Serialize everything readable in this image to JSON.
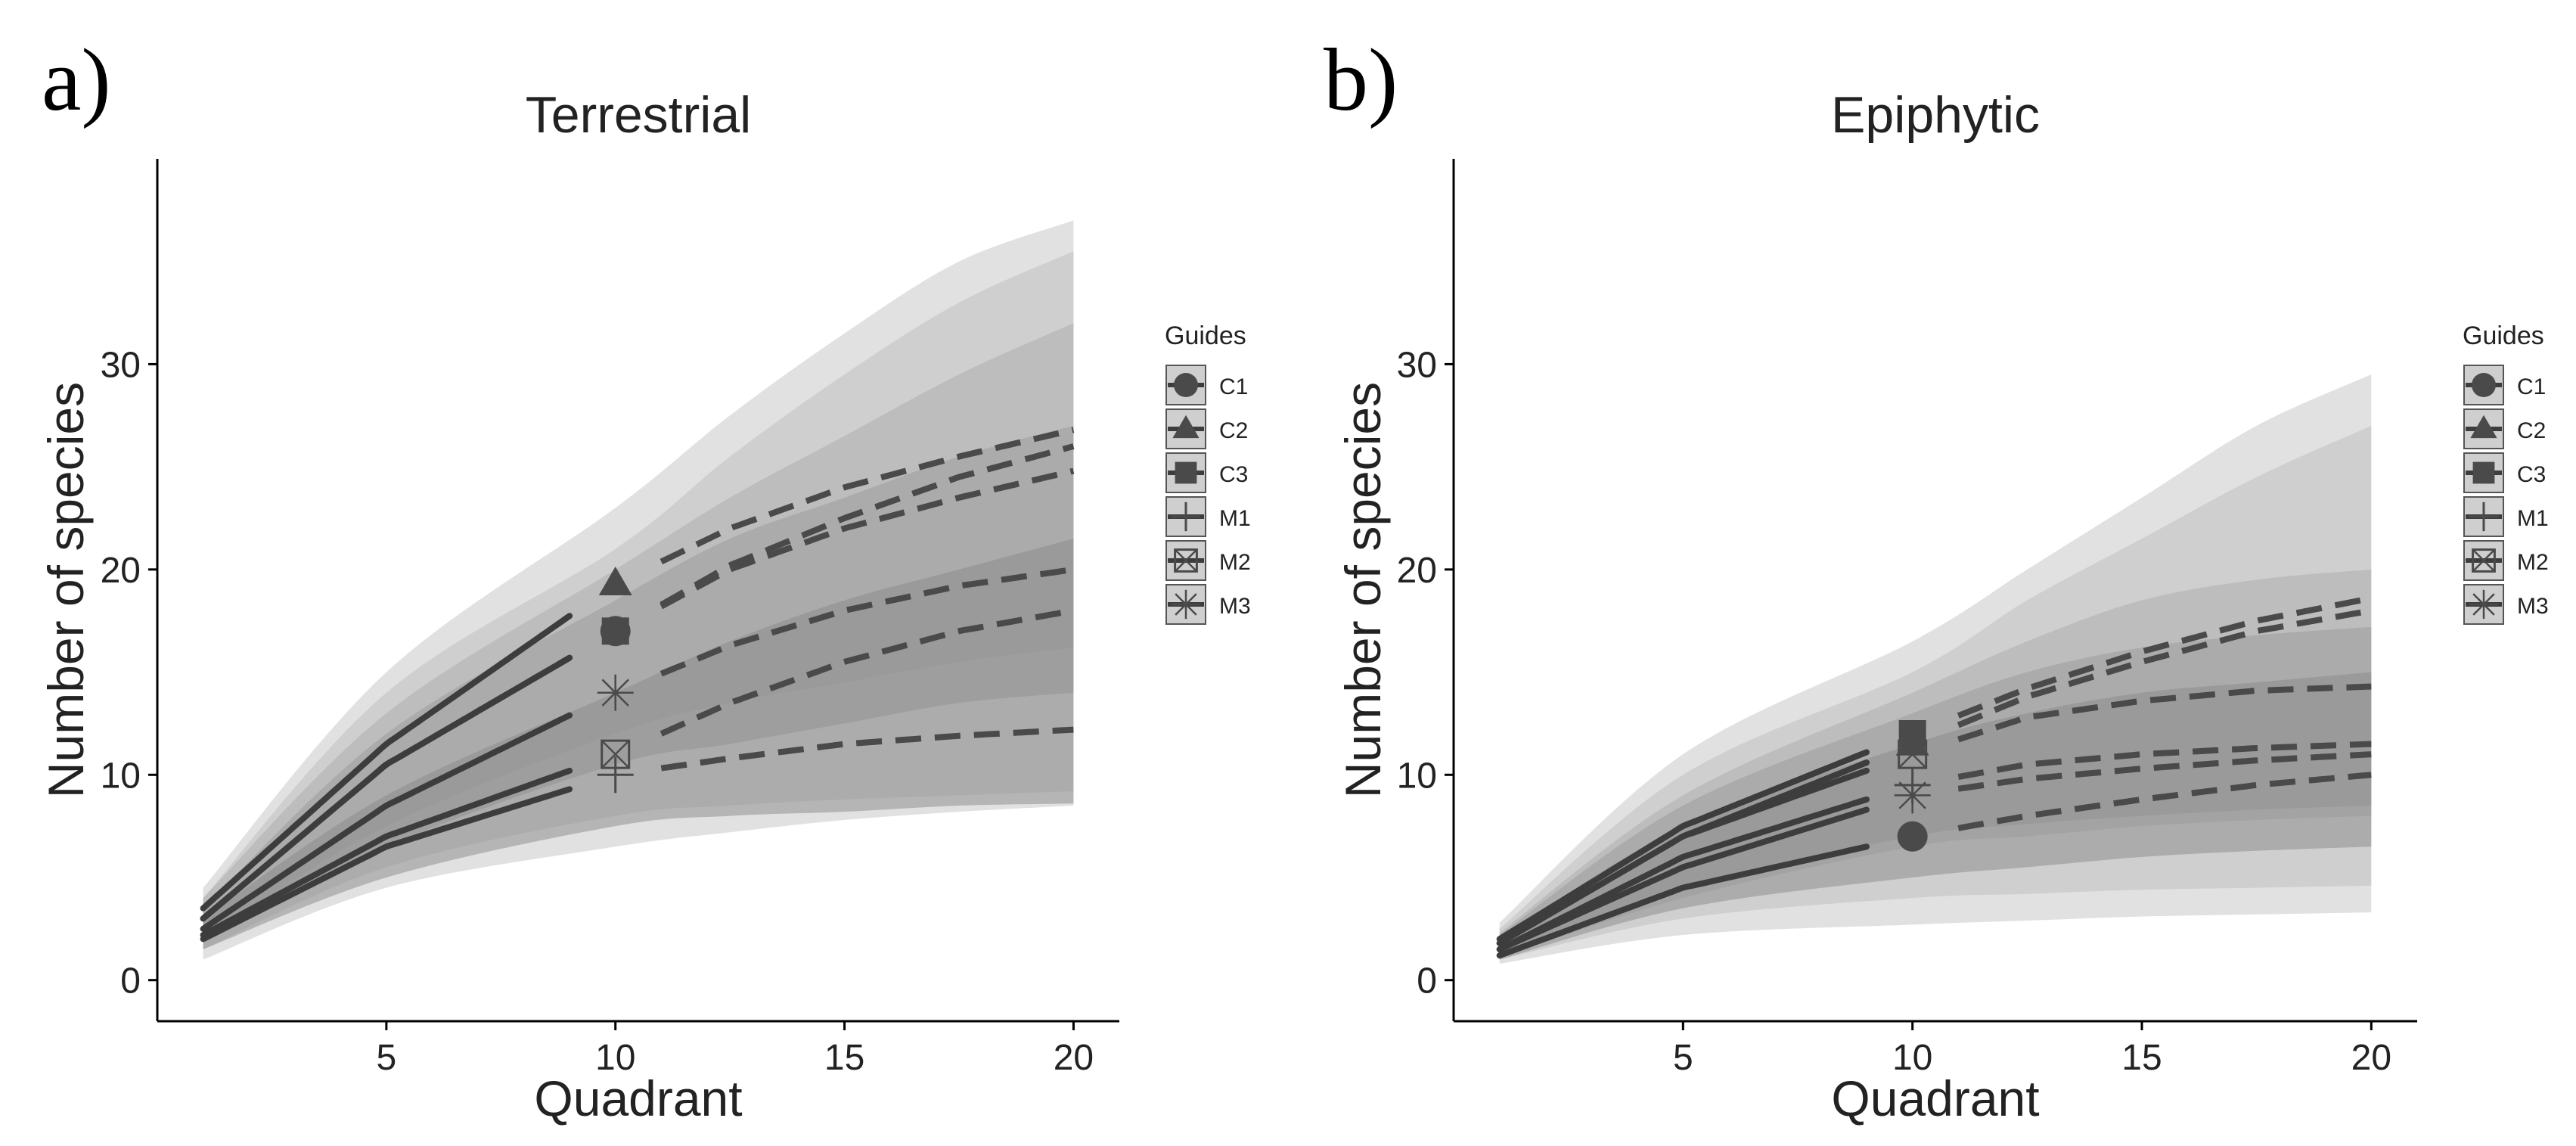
{
  "figure": {
    "legend_title": "Guides",
    "legend_items": [
      {
        "label": "C1",
        "shape": "circle"
      },
      {
        "label": "C2",
        "shape": "triangle"
      },
      {
        "label": "C3",
        "shape": "square"
      },
      {
        "label": "M1",
        "shape": "plus"
      },
      {
        "label": "M2",
        "shape": "boxcross"
      },
      {
        "label": "M3",
        "shape": "asterisk"
      }
    ]
  },
  "chart_data": [
    {
      "type": "line",
      "panel_label": "a)",
      "title": "Terrestrial",
      "xlabel": "Quadrant",
      "ylabel": "Number of species",
      "xlim": [
        0,
        21
      ],
      "ylim": [
        -2,
        40
      ],
      "xticks": [
        5,
        10,
        15,
        20
      ],
      "yticks": [
        0,
        10,
        20,
        30
      ],
      "observed_end": 10,
      "series": [
        {
          "name": "C1",
          "values": [
            3,
            10.5,
            17,
            20.2,
            22.5,
            24.5,
            26
          ]
        },
        {
          "name": "C2",
          "values": [
            3.5,
            11.5,
            19.3,
            22,
            24,
            25.5,
            26.8
          ]
        },
        {
          "name": "C3",
          "values": [
            3,
            10.5,
            17,
            20,
            22,
            23.5,
            24.8
          ]
        },
        {
          "name": "M1",
          "values": [
            2,
            6.5,
            10,
            10.8,
            11.5,
            11.9,
            12.2
          ]
        },
        {
          "name": "M2",
          "values": [
            2.2,
            7,
            11,
            13.5,
            15.5,
            17,
            18
          ]
        },
        {
          "name": "M3",
          "values": [
            2.5,
            8.5,
            14,
            16.3,
            18,
            19.2,
            20
          ]
        }
      ],
      "x": [
        1,
        5,
        10,
        12.5,
        15,
        17.5,
        20
      ],
      "bands": [
        {
          "lower": [
            1,
            4.5,
            6.5,
            7.2,
            7.8,
            8.2,
            8.5
          ],
          "upper": [
            4.5,
            15,
            23,
            27.5,
            31.5,
            35,
            37
          ]
        },
        {
          "lower": [
            1.5,
            5.5,
            8,
            8.5,
            8.8,
            9,
            9.2
          ],
          "upper": [
            4,
            14,
            21,
            25.5,
            29.5,
            33,
            35.5
          ]
        },
        {
          "lower": [
            2,
            7.5,
            12,
            13.5,
            14.5,
            15.5,
            16.2
          ],
          "upper": [
            4,
            13,
            20,
            23.5,
            26.5,
            29.5,
            32
          ]
        },
        {
          "lower": [
            1.8,
            6.5,
            10.5,
            11.5,
            12.5,
            13.5,
            14
          ],
          "upper": [
            3.5,
            12,
            18.5,
            21.5,
            23.5,
            25.5,
            27
          ]
        },
        {
          "lower": [
            1.5,
            5,
            7.5,
            8,
            8.2,
            8.5,
            8.6
          ],
          "upper": [
            3,
            9,
            14,
            16.5,
            18.5,
            20,
            21.5
          ]
        }
      ]
    },
    {
      "type": "line",
      "panel_label": "b)",
      "title": "Epiphytic",
      "xlabel": "Quadrant",
      "ylabel": "Number of species",
      "xlim": [
        0,
        21
      ],
      "ylim": [
        -2,
        40
      ],
      "xticks": [
        5,
        10,
        15,
        20
      ],
      "yticks": [
        0,
        10,
        20,
        30
      ],
      "observed_end": 10,
      "series": [
        {
          "name": "C1",
          "values": [
            1.2,
            4.5,
            7,
            8,
            8.8,
            9.5,
            10
          ]
        },
        {
          "name": "C2",
          "values": [
            1.8,
            7,
            11.5,
            13.8,
            15.5,
            17,
            18
          ]
        },
        {
          "name": "C3",
          "values": [
            2,
            7.5,
            12,
            14.2,
            16,
            17.5,
            18.6
          ]
        },
        {
          "name": "M1",
          "values": [
            1.5,
            6,
            9.5,
            10.5,
            11,
            11.3,
            11.5
          ]
        },
        {
          "name": "M2",
          "values": [
            1.8,
            7,
            11,
            12.8,
            13.6,
            14.1,
            14.3
          ]
        },
        {
          "name": "M3",
          "values": [
            1.5,
            5.5,
            9,
            9.8,
            10.3,
            10.7,
            11
          ]
        }
      ],
      "x": [
        1,
        5,
        10,
        12.5,
        15,
        17.5,
        20
      ],
      "bands": [
        {
          "lower": [
            0.8,
            2.2,
            2.7,
            2.9,
            3.1,
            3.2,
            3.3
          ],
          "upper": [
            2.8,
            11,
            16.5,
            20,
            23.5,
            27,
            29.5
          ]
        },
        {
          "lower": [
            1,
            3,
            4,
            4.2,
            4.4,
            4.5,
            4.6
          ],
          "upper": [
            2.5,
            10,
            15,
            18.5,
            21.5,
            24.5,
            27
          ]
        },
        {
          "lower": [
            1.1,
            4,
            6.5,
            7,
            7.5,
            7.8,
            8
          ],
          "upper": [
            2.3,
            9,
            14,
            16.5,
            18.5,
            19.5,
            20
          ]
        },
        {
          "lower": [
            1.2,
            4.5,
            7,
            7.6,
            8,
            8.3,
            8.5
          ],
          "upper": [
            2.2,
            8.5,
            13,
            15,
            16.2,
            16.8,
            17.2
          ]
        },
        {
          "lower": [
            1,
            3.5,
            5,
            5.5,
            6,
            6.3,
            6.5
          ],
          "upper": [
            2,
            7.5,
            11.5,
            13,
            14,
            14.5,
            15
          ]
        }
      ]
    }
  ]
}
